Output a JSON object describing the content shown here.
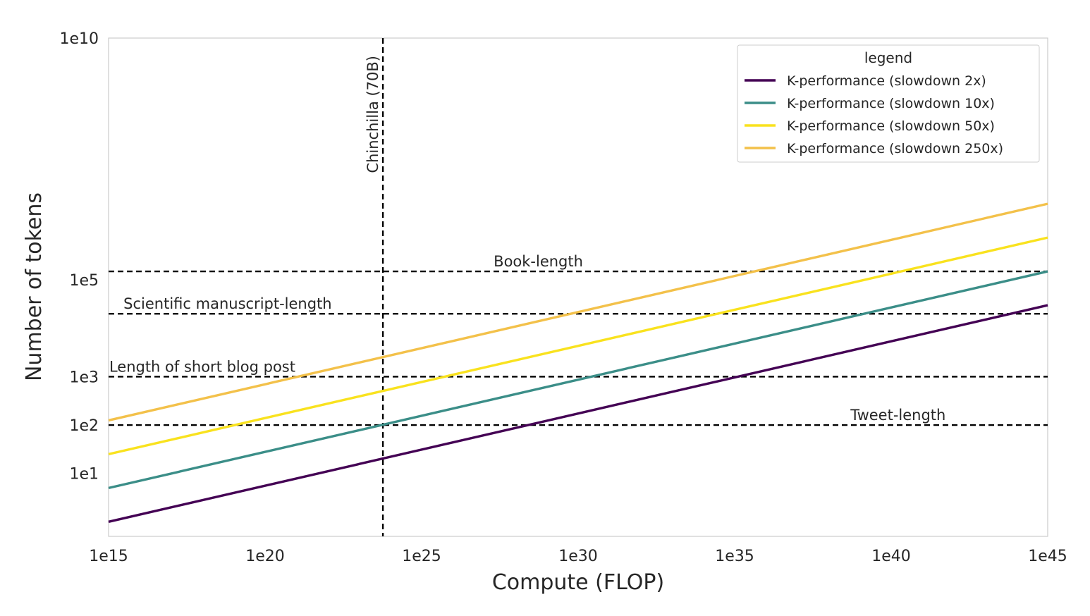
{
  "chart_data": {
    "type": "line",
    "title": "",
    "xlabel": "Compute (FLOP)",
    "ylabel": "Number of tokens",
    "x_scale": "log",
    "y_scale": "log",
    "xlim": [
      1000000000000000.0,
      1e+45
    ],
    "ylim": [
      0.5,
      10000000000.0
    ],
    "x_ticks": [
      {
        "value": 1000000000000000.0,
        "label": "1e15"
      },
      {
        "value": 1e+20,
        "label": "1e20"
      },
      {
        "value": 1e+25,
        "label": "1e25"
      },
      {
        "value": 1e+30,
        "label": "1e30"
      },
      {
        "value": 1e+35,
        "label": "1e35"
      },
      {
        "value": 1e+40,
        "label": "1e40"
      },
      {
        "value": 1e+45,
        "label": "1e45"
      }
    ],
    "y_ticks": [
      {
        "value": 10,
        "label": "1e1"
      },
      {
        "value": 100,
        "label": "1e2"
      },
      {
        "value": 1000,
        "label": "1e3"
      },
      {
        "value": 100000,
        "label": "1e5"
      },
      {
        "value": 10000000000,
        "label": "1e10"
      }
    ],
    "grid": false,
    "legend": {
      "title": "legend",
      "position": "top-right"
    },
    "series": [
      {
        "name": "K-performance (slowdown 2x)",
        "color": "#440154",
        "x": [
          1000000000000000.0,
          1e+45
        ],
        "y": [
          1,
          30000
        ]
      },
      {
        "name": "K-performance (slowdown 10x)",
        "color": "#3b8e88",
        "x": [
          1000000000000000.0,
          1e+45
        ],
        "y": [
          5,
          150000
        ]
      },
      {
        "name": "K-performance (slowdown 50x)",
        "color": "#f9e21e",
        "x": [
          1000000000000000.0,
          1e+45
        ],
        "y": [
          25,
          750000
        ]
      },
      {
        "name": "K-performance (slowdown 250x)",
        "color": "#f3c14a",
        "x": [
          1000000000000000.0,
          1e+45
        ],
        "y": [
          125,
          3750000
        ]
      }
    ],
    "hlines": [
      {
        "value": 150000,
        "label": "Book-length",
        "label_x": 2e+27
      },
      {
        "value": 20000,
        "label": "Scientific manuscript-length",
        "label_x": 3000000000000000.0
      },
      {
        "value": 1000,
        "label": "Length of short blog post",
        "label_x": 1050000000000000.0
      },
      {
        "value": 100,
        "label": "Tweet-length",
        "label_x": 5e+38
      }
    ],
    "vlines": [
      {
        "value": 5.8e+23,
        "label": "Chinchilla (70B)"
      }
    ]
  }
}
